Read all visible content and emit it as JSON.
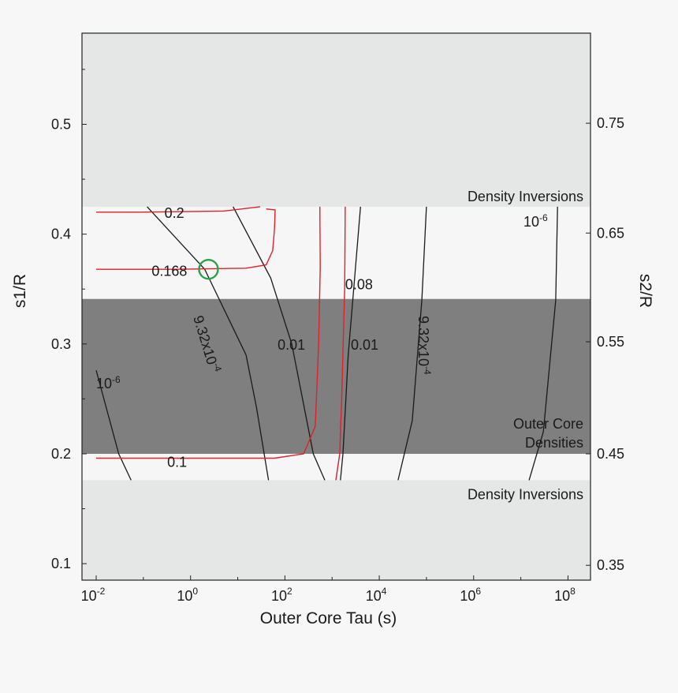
{
  "chart_data": {
    "type": "contour",
    "xlabel": "Outer Core Tau (s)",
    "ylabel_left": "s1/R",
    "ylabel_right": "s2/R",
    "x_scale": "log",
    "xlim": [
      0.005,
      300000000
    ],
    "ylim": [
      0.085,
      0.583
    ],
    "x_ticks": [
      {
        "value": 0.01,
        "base": "10",
        "exp": "-2"
      },
      {
        "value": 1,
        "base": "10",
        "exp": "0"
      },
      {
        "value": 100,
        "base": "10",
        "exp": "2"
      },
      {
        "value": 10000,
        "base": "10",
        "exp": "4"
      },
      {
        "value": 1000000,
        "base": "10",
        "exp": "6"
      },
      {
        "value": 100000000,
        "base": "10",
        "exp": "8"
      }
    ],
    "y_left_ticks": [
      {
        "value": 0.1,
        "label": "0.1"
      },
      {
        "value": 0.2,
        "label": "0.2"
      },
      {
        "value": 0.3,
        "label": "0.3"
      },
      {
        "value": 0.4,
        "label": "0.4"
      },
      {
        "value": 0.5,
        "label": "0.5"
      }
    ],
    "y_right_ticks": [
      {
        "value": 0.0985,
        "label": "0.35"
      },
      {
        "value": 0.2,
        "label": "0.45"
      },
      {
        "value": 0.302,
        "label": "0.55"
      },
      {
        "value": 0.401,
        "label": "0.65"
      },
      {
        "value": 0.501,
        "label": "0.75"
      }
    ],
    "regions": [
      {
        "name": "density-inversions-top",
        "label": "Density Inversions",
        "y_from": 0.425,
        "y_to": 0.583,
        "color": "#e5e6e6"
      },
      {
        "name": "outer-core-densities",
        "label_lines": [
          "Outer Core",
          "Densities"
        ],
        "y_from": 0.2,
        "y_to": 0.341,
        "color": "#7f7f7f"
      },
      {
        "name": "density-inversions-bottom",
        "label": "Density Inversions",
        "y_from": 0.085,
        "y_to": 0.176,
        "color": "#e5e6e6"
      }
    ],
    "black_contours": [
      {
        "name": "contour-1e-6-left",
        "label": "10-6",
        "points": [
          [
            0.01,
            0.276
          ],
          [
            0.03,
            0.2
          ],
          [
            0.055,
            0.176
          ]
        ]
      },
      {
        "name": "contour-9.32e-4-left",
        "points": [
          [
            0.12,
            0.425
          ],
          [
            2,
            0.368
          ],
          [
            15,
            0.29
          ],
          [
            25,
            0.242
          ],
          [
            45,
            0.176
          ]
        ]
      },
      {
        "name": "contour-0.01-left",
        "label": "0.01",
        "points": [
          [
            8,
            0.425
          ],
          [
            50,
            0.36
          ],
          [
            140,
            0.3
          ],
          [
            400,
            0.2
          ],
          [
            700,
            0.176
          ]
        ]
      },
      {
        "name": "contour-0.01-right",
        "label": "0.01",
        "points": [
          [
            4000,
            0.425
          ],
          [
            3000,
            0.36
          ],
          [
            2200,
            0.29
          ],
          [
            1700,
            0.2
          ],
          [
            1500,
            0.176
          ]
        ]
      },
      {
        "name": "contour-9.32e-4-right",
        "label": "9.32x10-4",
        "points": [
          [
            100000,
            0.425
          ],
          [
            80000,
            0.34
          ],
          [
            50000,
            0.23
          ],
          [
            25000,
            0.176
          ]
        ]
      },
      {
        "name": "contour-1e-6-right",
        "label": "10-6",
        "points": [
          [
            60000000,
            0.425
          ],
          [
            55000000,
            0.34
          ],
          [
            30000000,
            0.22
          ],
          [
            15000000,
            0.176
          ]
        ]
      }
    ],
    "red_contours": [
      {
        "name": "contour-0.2",
        "label": "0.2",
        "points": [
          [
            0.01,
            0.42
          ],
          [
            0.08,
            0.42
          ],
          [
            5,
            0.421
          ],
          [
            30,
            0.425
          ]
        ]
      },
      {
        "name": "contour-0.168",
        "label": "0.168",
        "points": [
          [
            0.01,
            0.368
          ],
          [
            0.5,
            0.368
          ],
          [
            15,
            0.369
          ],
          [
            40,
            0.372
          ],
          [
            55,
            0.385
          ],
          [
            60,
            0.404
          ],
          [
            62,
            0.422
          ],
          [
            40,
            0.423
          ]
        ]
      },
      {
        "name": "contour-0.08",
        "label": "0.08",
        "points": [
          [
            550,
            0.425
          ],
          [
            560,
            0.37
          ],
          [
            520,
            0.3
          ],
          [
            440,
            0.225
          ],
          [
            250,
            0.2
          ],
          [
            60,
            0.196
          ],
          [
            0.01,
            0.196
          ]
        ]
      },
      {
        "name": "contour-0.08b",
        "points": [
          [
            1900,
            0.425
          ],
          [
            1850,
            0.35
          ],
          [
            1600,
            0.25
          ],
          [
            1450,
            0.2
          ],
          [
            1200,
            0.176
          ]
        ]
      },
      {
        "name": "contour-0.1",
        "label": "0.1",
        "points": [
          [
            0.01,
            0.196
          ]
        ]
      }
    ],
    "contour_labels": [
      {
        "name": "label-0.2",
        "text": "0.2",
        "x": 0.28,
        "y": 0.42
      },
      {
        "name": "label-0.168",
        "text": "0.168",
        "x": 0.15,
        "y": 0.367
      },
      {
        "name": "label-0.08",
        "text": "0.08",
        "x": 1900,
        "y": 0.355
      },
      {
        "name": "label-0.1",
        "text": "0.1",
        "x": 0.32,
        "y": 0.193
      },
      {
        "name": "label-0.01-left",
        "text": "0.01",
        "x": 70,
        "y": 0.3
      },
      {
        "name": "label-0.01-right",
        "text": "0.01",
        "x": 2500,
        "y": 0.3
      }
    ],
    "marker": {
      "type": "circle",
      "x": 2.4,
      "y": 0.368,
      "color": "#2ea04a"
    }
  },
  "labels": {
    "label_9_32": {
      "base": "9.32x10",
      "exp": "-4"
    },
    "label_1e6": {
      "base": "10",
      "exp": "-6"
    }
  }
}
